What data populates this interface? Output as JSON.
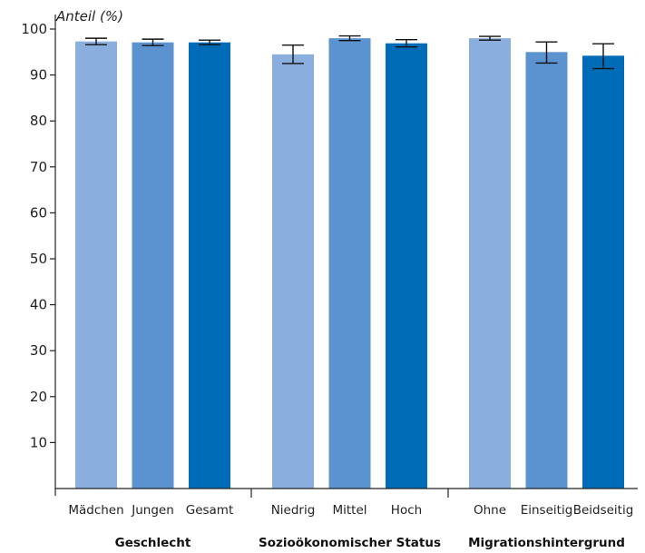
{
  "chart_data": {
    "type": "bar",
    "ylabel": "Anteil (%)",
    "ylim": [
      0,
      100
    ],
    "yticks": [
      10,
      20,
      30,
      40,
      50,
      60,
      70,
      80,
      90,
      100
    ],
    "grid": false,
    "groups": [
      {
        "label": "Geschlecht",
        "categories": [
          "Mädchen",
          "Jungen",
          "Gesamt"
        ]
      },
      {
        "label": "Sozioökonomischer Status",
        "categories": [
          "Niedrig",
          "Mittel",
          "Hoch"
        ]
      },
      {
        "label": "Migrationshintergrund",
        "categories": [
          "Ohne",
          "Einseitig",
          "Beidseitig"
        ]
      }
    ],
    "categories": [
      "Mädchen",
      "Jungen",
      "Gesamt",
      "Niedrig",
      "Mittel",
      "Hoch",
      "Ohne",
      "Einseitig",
      "Beidseitig"
    ],
    "values": [
      97.3,
      97.1,
      97.1,
      94.5,
      98.0,
      96.9,
      98.0,
      95.0,
      94.2
    ],
    "error_low": [
      96.6,
      96.4,
      96.6,
      92.5,
      97.5,
      96.1,
      97.6,
      92.6,
      91.4
    ],
    "error_high": [
      98.0,
      97.8,
      97.6,
      96.5,
      98.5,
      97.7,
      98.4,
      97.2,
      96.8
    ],
    "colors": [
      "#8aaedd",
      "#5a93d0",
      "#006cb8"
    ]
  }
}
